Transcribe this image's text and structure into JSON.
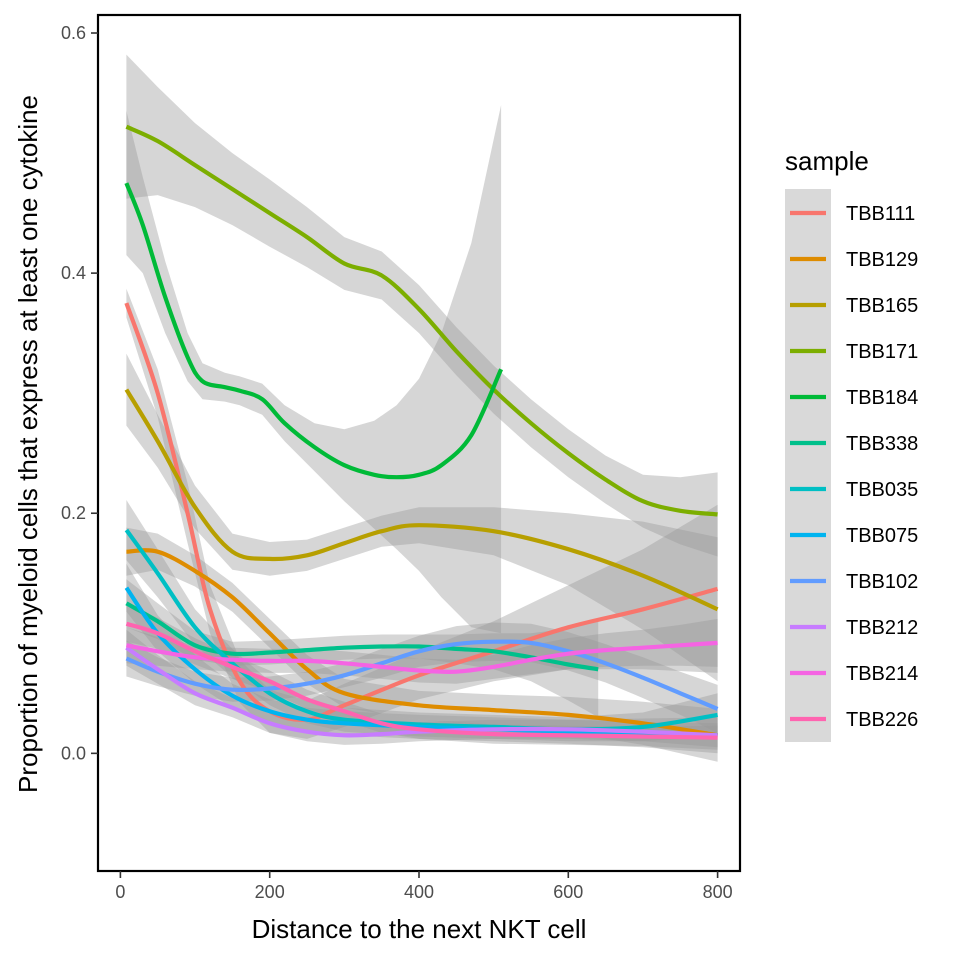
{
  "chart_data": {
    "type": "line",
    "xlabel": "Distance to the next NKT cell",
    "ylabel": "Proportion of myeloid cells that express at least one cytokine",
    "xlim": [
      -30,
      830
    ],
    "ylim": [
      -0.098,
      0.615
    ],
    "x_ticks": [
      0,
      200,
      400,
      600,
      800
    ],
    "x_tick_labels": [
      "0",
      "200",
      "400",
      "600",
      "800"
    ],
    "y_ticks": [
      0.0,
      0.2,
      0.4,
      0.6
    ],
    "y_tick_labels": [
      "0.0",
      "0.2",
      "0.4",
      "0.6"
    ],
    "grid": false,
    "legend": {
      "title": "sample",
      "placement": "right"
    },
    "band_color": "#999999",
    "series": [
      {
        "name": "TBB111",
        "color": "#F8766D",
        "points": [
          [
            8,
            0.375
          ],
          [
            50,
            0.3
          ],
          [
            90,
            0.2
          ],
          [
            120,
            0.12
          ],
          [
            160,
            0.06
          ],
          [
            200,
            0.035
          ],
          [
            250,
            0.028
          ],
          [
            300,
            0.04
          ],
          [
            400,
            0.065
          ],
          [
            500,
            0.085
          ],
          [
            600,
            0.105
          ],
          [
            700,
            0.12
          ],
          [
            800,
            0.137
          ]
        ],
        "band": [
          0.012,
          0.02,
          0.025,
          0.02,
          0.018,
          0.018,
          0.016,
          0.018,
          0.02,
          0.025,
          0.035,
          0.05,
          0.07
        ]
      },
      {
        "name": "TBB129",
        "color": "#DE8C00",
        "points": [
          [
            8,
            0.168
          ],
          [
            50,
            0.168
          ],
          [
            100,
            0.152
          ],
          [
            150,
            0.13
          ],
          [
            200,
            0.1
          ],
          [
            250,
            0.07
          ],
          [
            300,
            0.05
          ],
          [
            400,
            0.04
          ],
          [
            500,
            0.036
          ],
          [
            600,
            0.032
          ],
          [
            700,
            0.025
          ],
          [
            800,
            0.015
          ]
        ],
        "band": [
          0.02,
          0.015,
          0.013,
          0.012,
          0.012,
          0.012,
          0.012,
          0.012,
          0.013,
          0.015,
          0.018,
          0.022
        ]
      },
      {
        "name": "TBB165",
        "color": "#B79F00",
        "points": [
          [
            8,
            0.303
          ],
          [
            50,
            0.26
          ],
          [
            100,
            0.205
          ],
          [
            150,
            0.168
          ],
          [
            200,
            0.162
          ],
          [
            250,
            0.165
          ],
          [
            300,
            0.175
          ],
          [
            350,
            0.185
          ],
          [
            400,
            0.19
          ],
          [
            500,
            0.185
          ],
          [
            600,
            0.17
          ],
          [
            700,
            0.148
          ],
          [
            800,
            0.12
          ]
        ],
        "band": [
          0.03,
          0.022,
          0.018,
          0.015,
          0.014,
          0.013,
          0.013,
          0.013,
          0.015,
          0.02,
          0.03,
          0.045,
          0.06
        ]
      },
      {
        "name": "TBB171",
        "color": "#7CAE00",
        "points": [
          [
            8,
            0.522
          ],
          [
            50,
            0.51
          ],
          [
            100,
            0.49
          ],
          [
            150,
            0.47
          ],
          [
            200,
            0.45
          ],
          [
            250,
            0.43
          ],
          [
            300,
            0.408
          ],
          [
            350,
            0.398
          ],
          [
            400,
            0.37
          ],
          [
            450,
            0.335
          ],
          [
            500,
            0.303
          ],
          [
            550,
            0.275
          ],
          [
            600,
            0.25
          ],
          [
            650,
            0.228
          ],
          [
            700,
            0.21
          ],
          [
            750,
            0.202
          ],
          [
            800,
            0.199
          ]
        ],
        "band": [
          0.06,
          0.045,
          0.035,
          0.03,
          0.028,
          0.025,
          0.022,
          0.02,
          0.02,
          0.02,
          0.02,
          0.02,
          0.02,
          0.02,
          0.022,
          0.028,
          0.035
        ]
      },
      {
        "name": "TBB184",
        "color": "#00BA38",
        "points": [
          [
            8,
            0.475
          ],
          [
            30,
            0.44
          ],
          [
            60,
            0.38
          ],
          [
            90,
            0.33
          ],
          [
            110,
            0.31
          ],
          [
            140,
            0.305
          ],
          [
            160,
            0.302
          ],
          [
            190,
            0.295
          ],
          [
            220,
            0.275
          ],
          [
            260,
            0.255
          ],
          [
            300,
            0.24
          ],
          [
            340,
            0.232
          ],
          [
            370,
            0.23
          ],
          [
            400,
            0.232
          ],
          [
            430,
            0.24
          ],
          [
            470,
            0.265
          ],
          [
            510,
            0.32
          ]
        ],
        "band": [
          0.06,
          0.04,
          0.03,
          0.02,
          0.015,
          0.012,
          0.012,
          0.013,
          0.015,
          0.02,
          0.03,
          0.045,
          0.06,
          0.08,
          0.11,
          0.16,
          0.22
        ]
      },
      {
        "name": "TBB338",
        "color": "#00C08B",
        "points": [
          [
            8,
            0.125
          ],
          [
            50,
            0.11
          ],
          [
            100,
            0.09
          ],
          [
            150,
            0.083
          ],
          [
            200,
            0.084
          ],
          [
            250,
            0.086
          ],
          [
            300,
            0.088
          ],
          [
            350,
            0.089
          ],
          [
            400,
            0.089
          ],
          [
            450,
            0.087
          ],
          [
            500,
            0.085
          ],
          [
            550,
            0.08
          ],
          [
            600,
            0.074
          ],
          [
            640,
            0.07
          ]
        ],
        "band": [
          0.02,
          0.015,
          0.012,
          0.01,
          0.01,
          0.01,
          0.01,
          0.01,
          0.01,
          0.012,
          0.015,
          0.02,
          0.03,
          0.04
        ]
      },
      {
        "name": "TBB035",
        "color": "#00BFC4",
        "points": [
          [
            8,
            0.186
          ],
          [
            50,
            0.15
          ],
          [
            100,
            0.105
          ],
          [
            150,
            0.075
          ],
          [
            200,
            0.05
          ],
          [
            250,
            0.035
          ],
          [
            300,
            0.028
          ],
          [
            400,
            0.024
          ],
          [
            500,
            0.022
          ],
          [
            600,
            0.02
          ],
          [
            700,
            0.022
          ],
          [
            800,
            0.032
          ]
        ],
        "band": [
          0.025,
          0.02,
          0.015,
          0.012,
          0.01,
          0.01,
          0.01,
          0.01,
          0.01,
          0.01,
          0.012,
          0.018
        ]
      },
      {
        "name": "TBB075",
        "color": "#00B4F0",
        "points": [
          [
            8,
            0.138
          ],
          [
            50,
            0.1
          ],
          [
            100,
            0.07
          ],
          [
            150,
            0.048
          ],
          [
            200,
            0.035
          ],
          [
            250,
            0.028
          ],
          [
            300,
            0.025
          ],
          [
            400,
            0.022
          ],
          [
            500,
            0.02
          ],
          [
            600,
            0.018
          ],
          [
            700,
            0.017
          ],
          [
            800,
            0.015
          ]
        ],
        "band": [
          0.02,
          0.015,
          0.012,
          0.01,
          0.01,
          0.01,
          0.01,
          0.01,
          0.01,
          0.01,
          0.012,
          0.015
        ]
      },
      {
        "name": "TBB102",
        "color": "#619CFF",
        "points": [
          [
            8,
            0.079
          ],
          [
            50,
            0.068
          ],
          [
            100,
            0.058
          ],
          [
            150,
            0.053
          ],
          [
            200,
            0.054
          ],
          [
            250,
            0.058
          ],
          [
            300,
            0.065
          ],
          [
            350,
            0.075
          ],
          [
            400,
            0.085
          ],
          [
            450,
            0.091
          ],
          [
            500,
            0.093
          ],
          [
            550,
            0.092
          ],
          [
            600,
            0.085
          ],
          [
            650,
            0.075
          ],
          [
            700,
            0.063
          ],
          [
            750,
            0.05
          ],
          [
            800,
            0.037
          ]
        ],
        "band": [
          0.015,
          0.012,
          0.01,
          0.01,
          0.01,
          0.01,
          0.01,
          0.012,
          0.013,
          0.015,
          0.016,
          0.016,
          0.016,
          0.016,
          0.017,
          0.018,
          0.02
        ]
      },
      {
        "name": "TBB212",
        "color": "#C77CFF",
        "points": [
          [
            8,
            0.088
          ],
          [
            50,
            0.07
          ],
          [
            100,
            0.05
          ],
          [
            150,
            0.038
          ],
          [
            200,
            0.025
          ],
          [
            250,
            0.018
          ],
          [
            300,
            0.015
          ],
          [
            350,
            0.016
          ],
          [
            400,
            0.018
          ],
          [
            500,
            0.02
          ],
          [
            600,
            0.02
          ],
          [
            700,
            0.018
          ],
          [
            800,
            0.015
          ]
        ],
        "band": [
          0.015,
          0.012,
          0.01,
          0.008,
          0.008,
          0.008,
          0.008,
          0.008,
          0.008,
          0.008,
          0.008,
          0.008,
          0.01
        ]
      },
      {
        "name": "TBB214",
        "color": "#F564E3",
        "points": [
          [
            8,
            0.09
          ],
          [
            50,
            0.085
          ],
          [
            100,
            0.08
          ],
          [
            150,
            0.078
          ],
          [
            200,
            0.077
          ],
          [
            250,
            0.077
          ],
          [
            300,
            0.075
          ],
          [
            350,
            0.072
          ],
          [
            400,
            0.069
          ],
          [
            450,
            0.068
          ],
          [
            500,
            0.072
          ],
          [
            550,
            0.078
          ],
          [
            600,
            0.083
          ],
          [
            650,
            0.086
          ],
          [
            700,
            0.088
          ],
          [
            750,
            0.09
          ],
          [
            800,
            0.092
          ]
        ],
        "band": [
          0.015,
          0.012,
          0.01,
          0.01,
          0.01,
          0.01,
          0.01,
          0.01,
          0.01,
          0.01,
          0.01,
          0.012,
          0.013,
          0.014,
          0.015,
          0.017,
          0.02
        ]
      },
      {
        "name": "TBB226",
        "color": "#FF64B0",
        "points": [
          [
            8,
            0.108
          ],
          [
            50,
            0.1
          ],
          [
            100,
            0.085
          ],
          [
            150,
            0.072
          ],
          [
            200,
            0.06
          ],
          [
            250,
            0.045
          ],
          [
            300,
            0.035
          ],
          [
            350,
            0.025
          ],
          [
            400,
            0.02
          ],
          [
            500,
            0.016
          ],
          [
            600,
            0.015
          ],
          [
            700,
            0.014
          ],
          [
            800,
            0.013
          ]
        ],
        "band": [
          0.015,
          0.013,
          0.011,
          0.01,
          0.009,
          0.008,
          0.008,
          0.008,
          0.008,
          0.008,
          0.008,
          0.008,
          0.01
        ]
      }
    ]
  }
}
